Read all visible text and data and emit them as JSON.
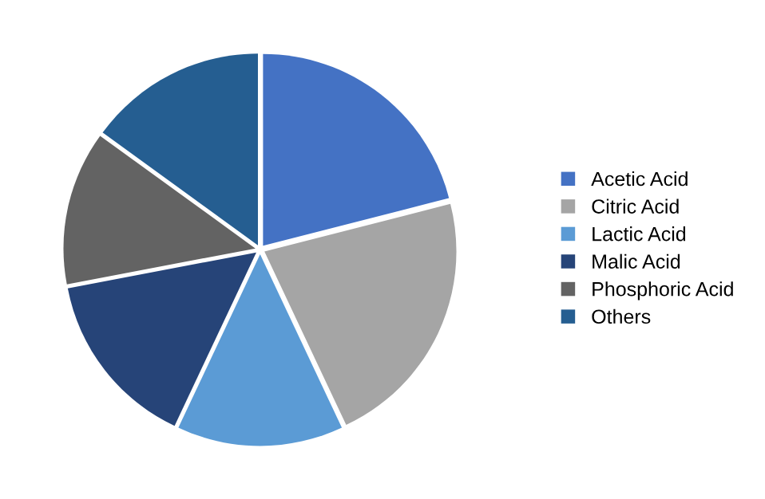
{
  "chart_data": {
    "type": "pie",
    "categories": [
      "Acetic Acid",
      "Citric Acid",
      "Lactic Acid",
      "Malic Acid",
      "Phosphoric Acid",
      "Others"
    ],
    "values": [
      21,
      22,
      14,
      15,
      13,
      15
    ],
    "colors": [
      "#4472c4",
      "#a5a5a5",
      "#5b9bd5",
      "#264478",
      "#636363",
      "#255e91"
    ],
    "legend": "right"
  }
}
